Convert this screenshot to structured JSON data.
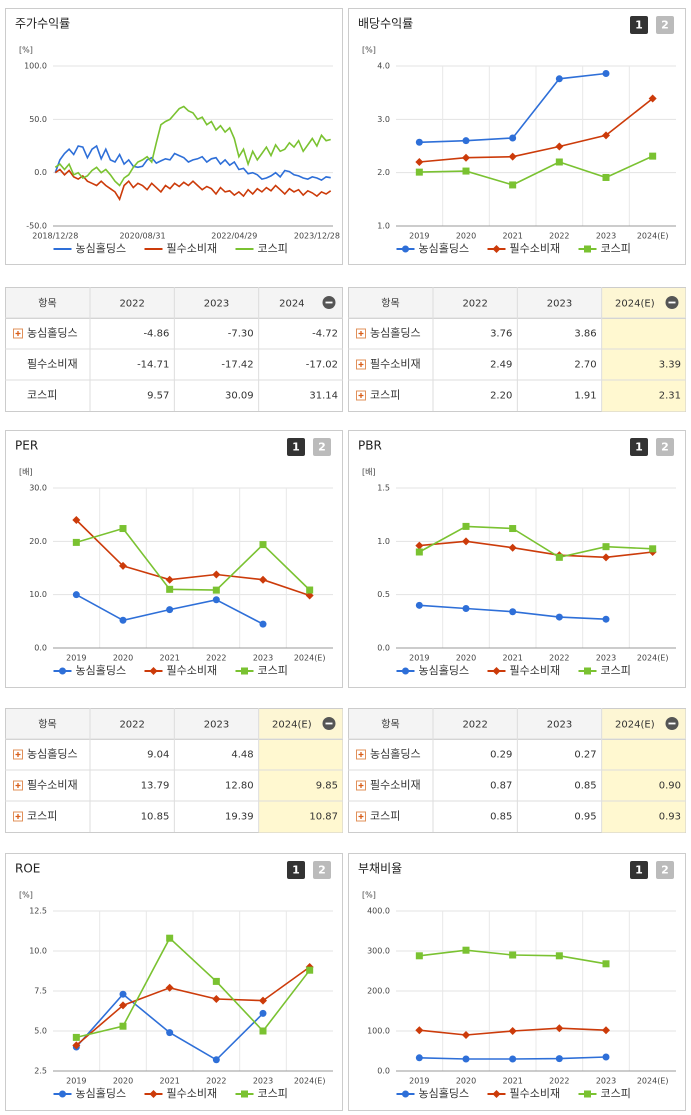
{
  "chart_data": [
    {
      "type": "line",
      "title": "주가수익률",
      "unit": "[%]",
      "vgrid": false,
      "categories": [
        "2018/12/28",
        null,
        null,
        null,
        null,
        null,
        null,
        null,
        null,
        null,
        null,
        null,
        null,
        null,
        null,
        null,
        null,
        null,
        null,
        "2020/08/31",
        null,
        null,
        null,
        null,
        null,
        null,
        null,
        null,
        null,
        null,
        null,
        null,
        null,
        null,
        null,
        null,
        null,
        null,
        null,
        "2022/04/29",
        null,
        null,
        null,
        null,
        null,
        null,
        null,
        null,
        null,
        null,
        null,
        null,
        null,
        null,
        null,
        null,
        null,
        "2023/12/28",
        null,
        null,
        null
      ],
      "ylim": [
        -50,
        100
      ],
      "yticks": [
        {
          "value": -50,
          "label": "-50.0"
        },
        {
          "value": 0,
          "label": "0.0"
        },
        {
          "value": 50,
          "label": "50.0"
        },
        {
          "value": 100,
          "label": "100.0"
        }
      ],
      "series": [
        {
          "name": "농심홀딩스",
          "color": "#2e6fd8",
          "marker": "none",
          "values": [
            0,
            12,
            18,
            22,
            17,
            25,
            24,
            14,
            22,
            25,
            13,
            22,
            12,
            10,
            17,
            8,
            12,
            6,
            5,
            6,
            12,
            14,
            9,
            11,
            13,
            12,
            18,
            16,
            14,
            10,
            12,
            13,
            15,
            10,
            13,
            14,
            8,
            12,
            7,
            10,
            3,
            4,
            -1,
            0,
            -2,
            -6,
            -5,
            -3,
            0,
            -4,
            2,
            1,
            -2,
            -3,
            -5,
            -6,
            -4,
            -5,
            -7,
            -4,
            -4.72
          ]
        },
        {
          "name": "필수소비재",
          "color": "#cc3b0a",
          "marker": "none",
          "values": [
            0,
            3,
            -2,
            2,
            -4,
            -6,
            -3,
            -8,
            -10,
            -12,
            -8,
            -12,
            -15,
            -18,
            -25,
            -12,
            -8,
            -14,
            -10,
            -12,
            -16,
            -10,
            -14,
            -18,
            -12,
            -15,
            -10,
            -13,
            -9,
            -12,
            -8,
            -12,
            -16,
            -13,
            -15,
            -20,
            -14,
            -18,
            -17,
            -21,
            -18,
            -22,
            -16,
            -20,
            -15,
            -18,
            -14,
            -17,
            -12,
            -16,
            -20,
            -15,
            -18,
            -16,
            -21,
            -17,
            -19,
            -22,
            -18,
            -20,
            -17.02
          ]
        },
        {
          "name": "코스피",
          "color": "#7ac231",
          "marker": "none",
          "values": [
            5,
            8,
            3,
            8,
            -2,
            0,
            -5,
            -3,
            2,
            5,
            0,
            3,
            -2,
            -8,
            -12,
            -5,
            -2,
            5,
            10,
            12,
            15,
            10,
            28,
            45,
            48,
            50,
            55,
            60,
            62,
            58,
            56,
            50,
            52,
            45,
            48,
            40,
            44,
            38,
            42,
            32,
            15,
            22,
            8,
            20,
            12,
            18,
            24,
            16,
            26,
            20,
            22,
            28,
            24,
            30,
            20,
            26,
            32,
            25,
            35,
            30,
            31.14
          ]
        }
      ]
    },
    {
      "type": "line",
      "title": "배당수익률",
      "buttons": [
        "1",
        "2"
      ],
      "unit": "[%]",
      "vgrid": true,
      "categories": [
        "2019",
        "2020",
        "2021",
        "2022",
        "2023",
        "2024(E)"
      ],
      "ylim": [
        1,
        4
      ],
      "yticks": [
        {
          "value": 1,
          "label": "1.0"
        },
        {
          "value": 2,
          "label": "2.0"
        },
        {
          "value": 3,
          "label": "3.0"
        },
        {
          "value": 4,
          "label": "4.0"
        }
      ],
      "series": [
        {
          "name": "농심홀딩스",
          "color": "#2e6fd8",
          "marker": "circle",
          "values": [
            2.57,
            2.6,
            2.65,
            3.76,
            3.86,
            null
          ]
        },
        {
          "name": "필수소비재",
          "color": "#cc3b0a",
          "marker": "diamond",
          "values": [
            2.2,
            2.28,
            2.3,
            2.49,
            2.7,
            3.39
          ]
        },
        {
          "name": "코스피",
          "color": "#7ac231",
          "marker": "square",
          "values": [
            2.01,
            2.03,
            1.77,
            2.2,
            1.91,
            2.31
          ]
        }
      ]
    },
    {
      "type": "line",
      "title": "PER",
      "buttons": [
        "1",
        "2"
      ],
      "unit": "[배]",
      "vgrid": true,
      "categories": [
        "2019",
        "2020",
        "2021",
        "2022",
        "2023",
        "2024(E)"
      ],
      "ylim": [
        0,
        30
      ],
      "yticks": [
        {
          "value": 0,
          "label": "0.0"
        },
        {
          "value": 10,
          "label": "10.0"
        },
        {
          "value": 20,
          "label": "20.0"
        },
        {
          "value": 30,
          "label": "30.0"
        }
      ],
      "series": [
        {
          "name": "농심홀딩스",
          "color": "#2e6fd8",
          "marker": "circle",
          "values": [
            10,
            5.2,
            7.2,
            9.04,
            4.48,
            null
          ]
        },
        {
          "name": "필수소비재",
          "color": "#cc3b0a",
          "marker": "diamond",
          "values": [
            24,
            15.4,
            12.8,
            13.79,
            12.8,
            9.85
          ]
        },
        {
          "name": "코스피",
          "color": "#7ac231",
          "marker": "square",
          "values": [
            19.8,
            22.4,
            11,
            10.85,
            19.39,
            10.87
          ]
        }
      ]
    },
    {
      "type": "line",
      "title": "PBR",
      "buttons": [
        "1",
        "2"
      ],
      "unit": "[배]",
      "vgrid": true,
      "categories": [
        "2019",
        "2020",
        "2021",
        "2022",
        "2023",
        "2024(E)"
      ],
      "ylim": [
        0,
        1.5
      ],
      "yticks": [
        {
          "value": 0,
          "label": "0.0"
        },
        0.5,
        {
          "value": 1,
          "label": "1.0"
        },
        1.5
      ],
      "series": [
        {
          "name": "농심홀딩스",
          "color": "#2e6fd8",
          "marker": "circle",
          "values": [
            0.4,
            0.37,
            0.34,
            0.29,
            0.27,
            null
          ]
        },
        {
          "name": "필수소비재",
          "color": "#cc3b0a",
          "marker": "diamond",
          "values": [
            0.96,
            1,
            0.94,
            0.87,
            0.85,
            0.9
          ]
        },
        {
          "name": "코스피",
          "color": "#7ac231",
          "marker": "square",
          "values": [
            0.9,
            1.14,
            1.12,
            0.85,
            0.95,
            0.93
          ]
        }
      ]
    },
    {
      "type": "line",
      "title": "ROE",
      "buttons": [
        "1",
        "2"
      ],
      "unit": "[%]",
      "vgrid": true,
      "categories": [
        "2019",
        "2020",
        "2021",
        "2022",
        "2023",
        "2024(E)"
      ],
      "ylim": [
        2.5,
        12.5
      ],
      "yticks": [
        2.5,
        {
          "value": 5,
          "label": "5.0"
        },
        7.5,
        {
          "value": 10,
          "label": "10.0"
        },
        12.5
      ],
      "series": [
        {
          "name": "농심홀딩스",
          "color": "#2e6fd8",
          "marker": "circle",
          "values": [
            4,
            7.3,
            4.9,
            3.2,
            6.1,
            null
          ]
        },
        {
          "name": "필수소비재",
          "color": "#cc3b0a",
          "marker": "diamond",
          "values": [
            4.1,
            6.6,
            7.7,
            7,
            6.9,
            9
          ]
        },
        {
          "name": "코스피",
          "color": "#7ac231",
          "marker": "square",
          "values": [
            4.6,
            5.3,
            10.8,
            8.1,
            5,
            8.8
          ]
        }
      ]
    },
    {
      "type": "line",
      "title": "부채비율",
      "buttons": [
        "1",
        "2"
      ],
      "unit": "[%]",
      "vgrid": true,
      "categories": [
        "2019",
        "2020",
        "2021",
        "2022",
        "2023",
        "2024(E)"
      ],
      "ylim": [
        0,
        400
      ],
      "yticks": [
        {
          "value": 0,
          "label": "0.0"
        },
        {
          "value": 100,
          "label": "100.0"
        },
        {
          "value": 200,
          "label": "200.0"
        },
        {
          "value": 300,
          "label": "300.0"
        },
        {
          "value": 400,
          "label": "400.0"
        }
      ],
      "series": [
        {
          "name": "농심홀딩스",
          "color": "#2e6fd8",
          "marker": "circle",
          "values": [
            33,
            30,
            30,
            31,
            35,
            null
          ]
        },
        {
          "name": "필수소비재",
          "color": "#cc3b0a",
          "marker": "diamond",
          "values": [
            102,
            90,
            100,
            107,
            102,
            null
          ]
        },
        {
          "name": "코스피",
          "color": "#7ac231",
          "marker": "square",
          "values": [
            288,
            302,
            290,
            288,
            268,
            null
          ]
        }
      ]
    }
  ],
  "tables": [
    {
      "header": [
        "항목",
        "2022",
        "2023",
        "2024"
      ],
      "highlight_last": false,
      "expandable": [
        true,
        false,
        false
      ],
      "rows": [
        [
          "농심홀딩스",
          "-4.86",
          "-7.30",
          "-4.72"
        ],
        [
          "필수소비재",
          "-14.71",
          "-17.42",
          "-17.02"
        ],
        [
          "코스피",
          "9.57",
          "30.09",
          "31.14"
        ]
      ]
    },
    {
      "header": [
        "항목",
        "2022",
        "2023",
        "2024(E)"
      ],
      "highlight_last": true,
      "expandable": [
        true,
        true,
        true
      ],
      "rows": [
        [
          "농심홀딩스",
          "3.76",
          "3.86",
          null
        ],
        [
          "필수소비재",
          "2.49",
          "2.70",
          "3.39"
        ],
        [
          "코스피",
          "2.20",
          "1.91",
          "2.31"
        ]
      ]
    },
    {
      "header": [
        "항목",
        "2022",
        "2023",
        "2024(E)"
      ],
      "highlight_last": true,
      "expandable": [
        true,
        true,
        true
      ],
      "rows": [
        [
          "농심홀딩스",
          "9.04",
          "4.48",
          null
        ],
        [
          "필수소비재",
          "13.79",
          "12.80",
          "9.85"
        ],
        [
          "코스피",
          "10.85",
          "19.39",
          "10.87"
        ]
      ]
    },
    {
      "header": [
        "항목",
        "2022",
        "2023",
        "2024(E)"
      ],
      "highlight_last": true,
      "expandable": [
        true,
        true,
        true
      ],
      "rows": [
        [
          "농심홀딩스",
          "0.29",
          "0.27",
          null
        ],
        [
          "필수소비재",
          "0.87",
          "0.85",
          "0.90"
        ],
        [
          "코스피",
          "0.85",
          "0.95",
          "0.93"
        ]
      ]
    }
  ]
}
